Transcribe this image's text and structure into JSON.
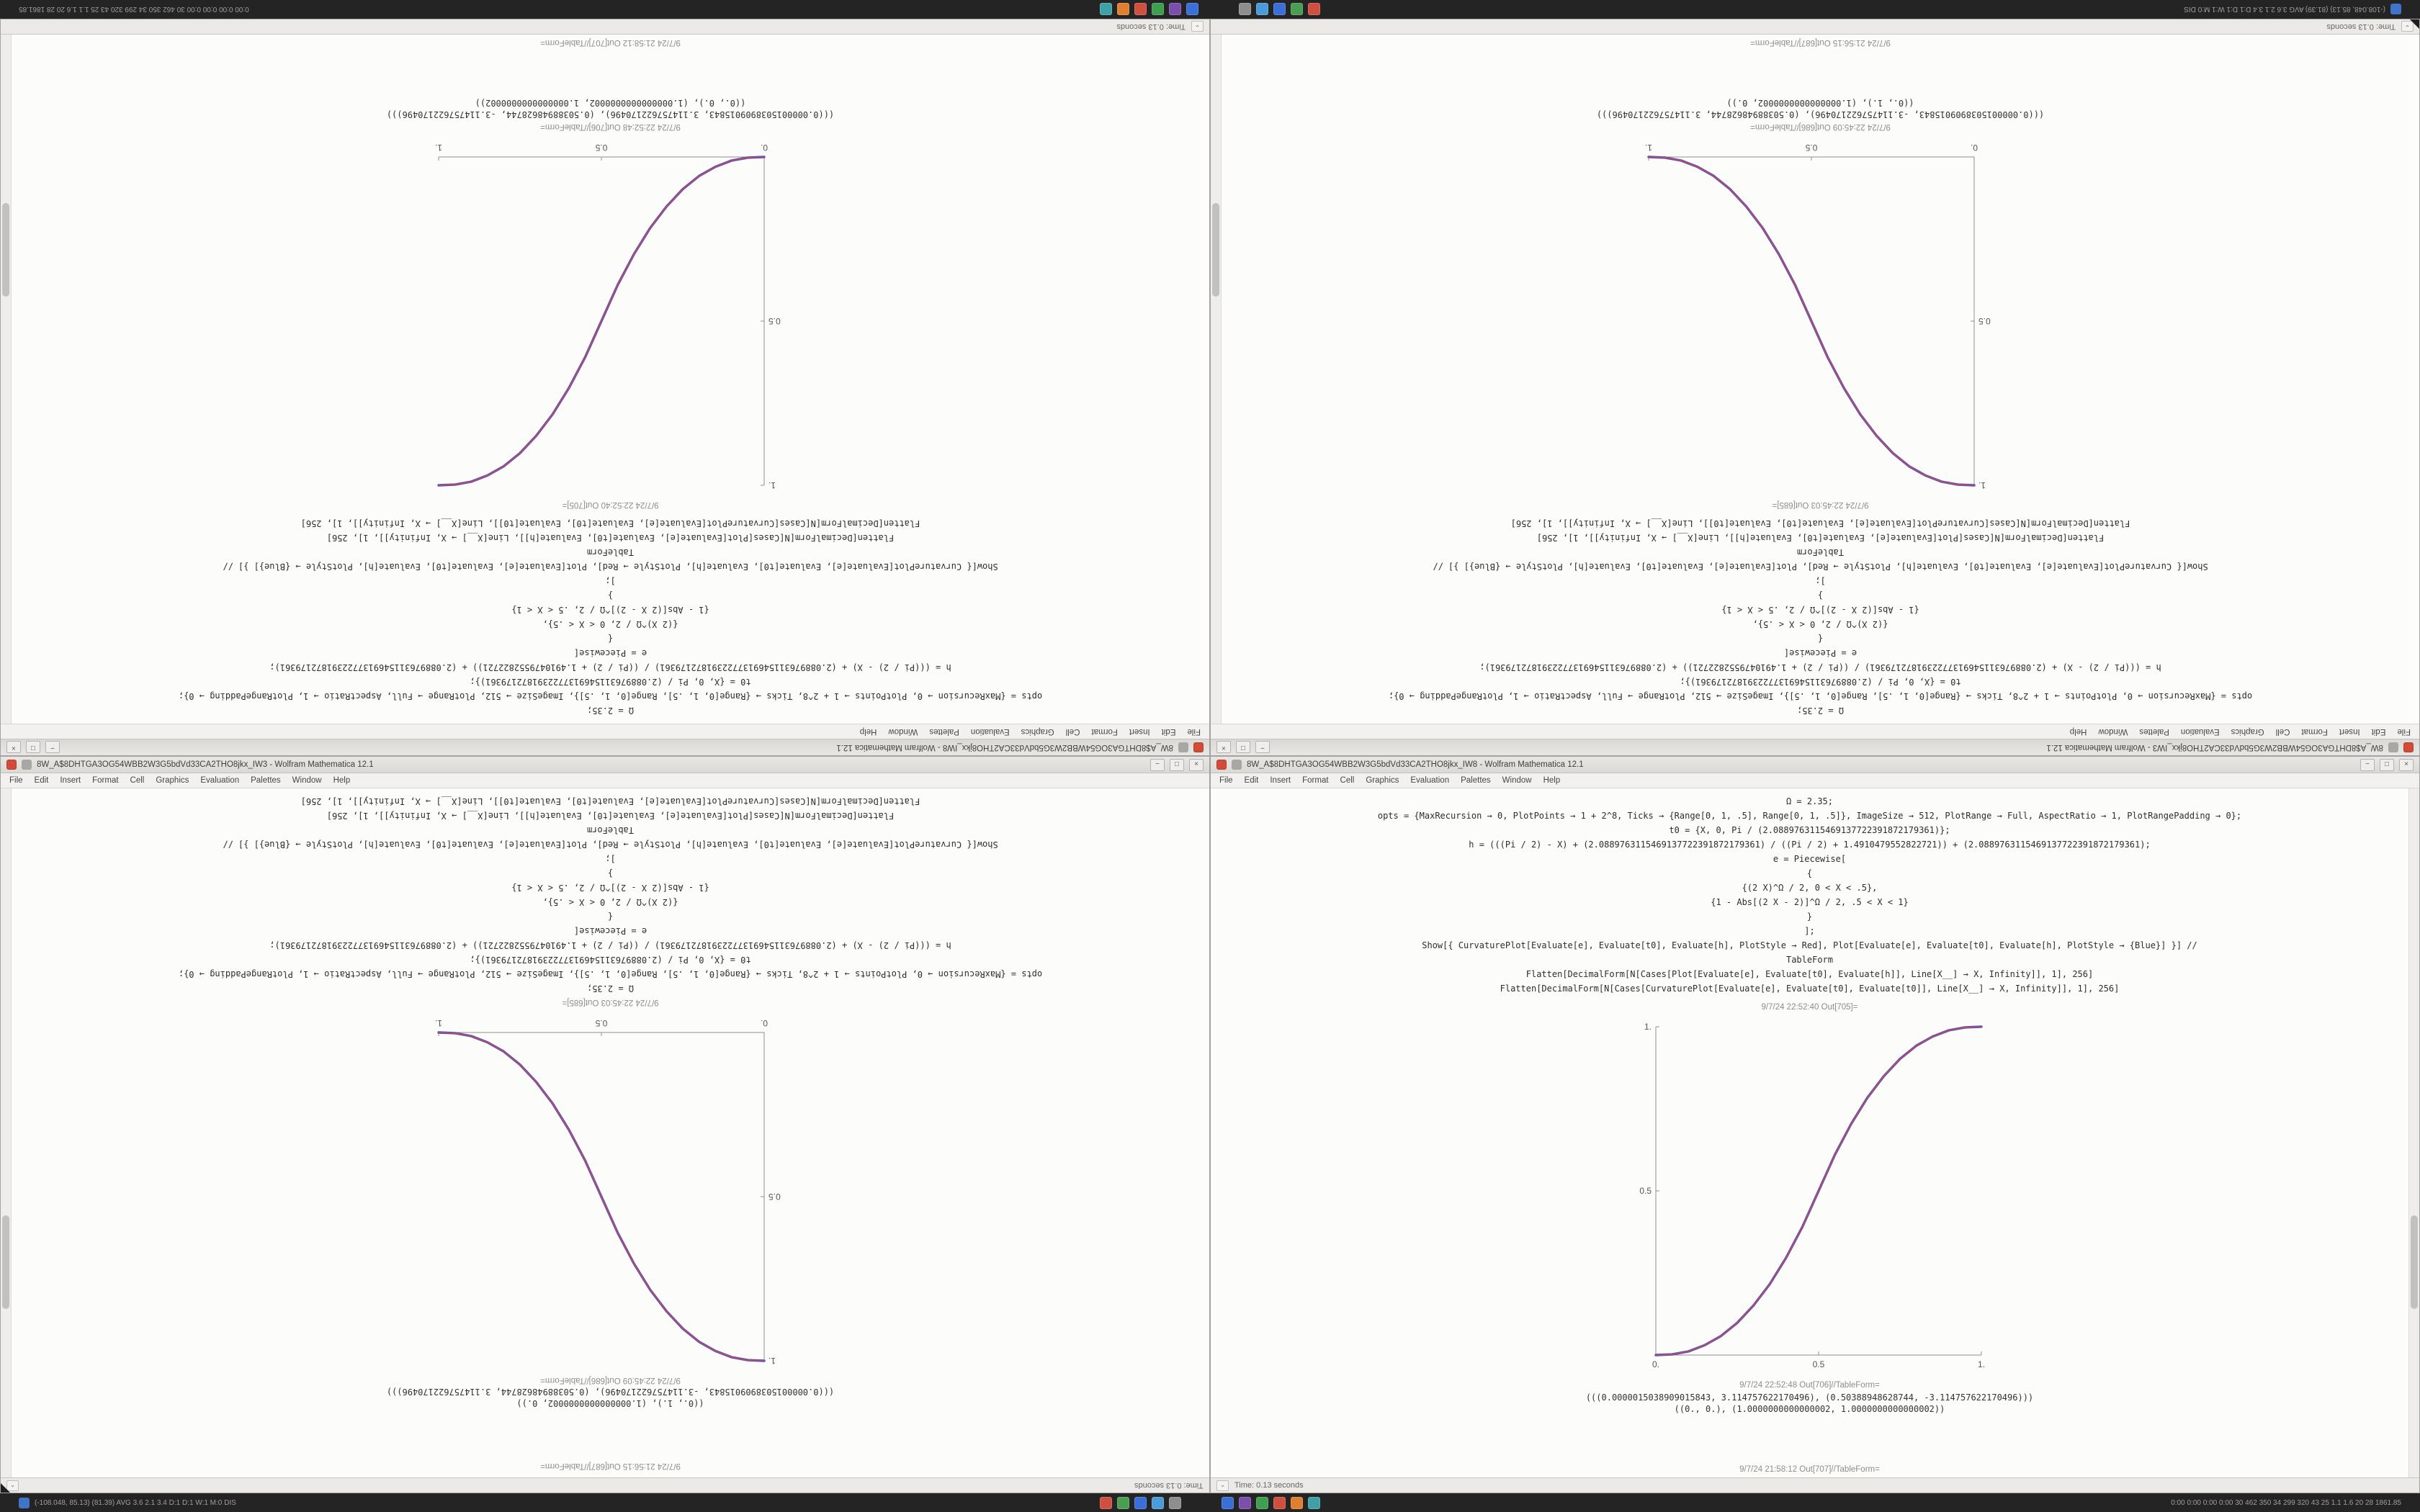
{
  "taskbar": {
    "left_text": "(-108.048, 85.13) (81.39) AVG 3.6 2.1 3.4 D:1 D:1 W:1 M:0 DIS",
    "right_text": "0:00 0:00 0:00 0:00 30 462 350 34 299 320 43 25 1.1 1.6 20 28 1861.85",
    "left_icons": [
      {
        "name": "app-icon-1",
        "color": "#d05040"
      },
      {
        "name": "app-icon-2",
        "color": "#4a9e52"
      },
      {
        "name": "app-icon-3",
        "color": "#3a6fd8"
      },
      {
        "name": "app-icon-4",
        "color": "#4a9bd8"
      },
      {
        "name": "app-icon-5",
        "color": "#8e8e8e"
      }
    ],
    "right_icons": [
      {
        "name": "app-icon-6",
        "color": "#3a6fd8"
      },
      {
        "name": "app-icon-7",
        "color": "#7a4fae"
      },
      {
        "name": "app-icon-8",
        "color": "#3f9e4f"
      },
      {
        "name": "app-icon-9",
        "color": "#d05040"
      },
      {
        "name": "app-icon-10",
        "color": "#de8030"
      },
      {
        "name": "app-icon-11",
        "color": "#3fa0a8"
      }
    ]
  },
  "menu": {
    "items": [
      "File",
      "Edit",
      "Insert",
      "Format",
      "Cell",
      "Graphics",
      "Evaluation",
      "Palettes",
      "Window",
      "Help"
    ]
  },
  "window_buttons": {
    "minimize": "−",
    "maximize": "□",
    "close": "×"
  },
  "icons": {
    "chevron_down": "⌄"
  },
  "status": {
    "time_label": "Time: 0.13 seconds"
  },
  "code_lines": [
    "Ω = 2.35;",
    "opts = {MaxRecursion → 0, PlotPoints → 1 + 2^8, Ticks → {Range[0, 1, .5], Range[0, 1, .5]}, ImageSize → 512, PlotRange → Full, AspectRatio → 1, PlotRangePadding → 0};",
    "t0 = {X, 0, Pi / (2.0889763115469137722391872179361)};",
    "h = (((Pi / 2) - X) + (2.0889763115469137722391872179361) / ((Pi / 2) + 1.4910479552822721)) + (2.0889763115469137722391872179361);",
    "e = Piecewise[",
    "{",
    "{(2 X)^Ω / 2, 0 < X < .5},",
    "{1 - Abs[(2 X - 2)]^Ω / 2, .5 < X < 1}",
    "}",
    "];",
    "Show[{ CurvaturePlot[Evaluate[e], Evaluate[t0], Evaluate[h], PlotStyle → Red], Plot[Evaluate[e], Evaluate[t0], Evaluate[h], PlotStyle → {Blue}] }] //",
    "TableForm",
    "Flatten[DecimalForm[N[Cases[Plot[Evaluate[e], Evaluate[t0], Evaluate[h]], Line[X__] → X, Infinity]], 1], 256]",
    "Flatten[DecimalForm[N[Cases[CurvaturePlot[Evaluate[e], Evaluate[t0], Evaluate[t0]], Line[X__] → X, Infinity]], 1], 256]"
  ],
  "notebook_a": {
    "title": "8W_A$8DHTGA3OG54WBB2W3G5bdVd33CA2THO8jkx_IW8 - Wolfram Mathematica 12.1",
    "out_plot_label": "9/7/24 22:52:40 Out[705]=",
    "out_table_label": "9/7/24 22:52:48 Out[706]//TableForm=",
    "output_line1": "(((0.0000015038909015843, 3.114757622170496), (0.50388948628744, -3.114757622170496)))",
    "output_line2": "((0., 0.), (1.0000000000000002, 1.0000000000000002))",
    "edge_label": "9/7/24 21:58:12 Out[707]//TableForm=",
    "plot": {
      "type": "line",
      "x": [
        0,
        0.05,
        0.1,
        0.15,
        0.2,
        0.25,
        0.3,
        0.35,
        0.4,
        0.45,
        0.5,
        0.55,
        0.6,
        0.65,
        0.7,
        0.75,
        0.8,
        0.85,
        0.9,
        0.95,
        1
      ],
      "y": [
        0,
        0.002,
        0.011,
        0.03,
        0.058,
        0.098,
        0.151,
        0.216,
        0.296,
        0.39,
        0.5,
        0.61,
        0.704,
        0.784,
        0.849,
        0.902,
        0.942,
        0.97,
        0.989,
        0.998,
        1
      ],
      "xticks": [
        {
          "v": 0,
          "label": "0."
        },
        {
          "v": 0.5,
          "label": "0.5"
        },
        {
          "v": 1,
          "label": "1."
        }
      ],
      "yticks": [
        {
          "v": 0.5,
          "label": "0.5"
        },
        {
          "v": 1,
          "label": "1."
        }
      ],
      "xlim": [
        0,
        1
      ],
      "ylim": [
        0,
        1
      ],
      "colors": [
        "#4553c4",
        "#c84a5a"
      ]
    }
  },
  "notebook_b": {
    "title": "8W_A$8DHTGA3OG54WBB2W3G5bdVd33CA2THO8jkx_IW3 - Wolfram Mathematica 12.1",
    "out_plot_label": "9/7/24 22:45:03 Out[685]=",
    "out_table_label": "9/7/24 22:45:09 Out[686]//TableForm=",
    "output_line1": "(((0.0000015038909015843, -3.114757622170496), (0.50388948628744, 3.114757622170496)))",
    "output_line2": "((0., 1.), (1.0000000000000002, 0.))",
    "edge_label": "9/7/24 21:56:15 Out[687]//TableForm=",
    "plot": {
      "type": "line",
      "x": [
        0,
        0.05,
        0.1,
        0.15,
        0.2,
        0.25,
        0.3,
        0.35,
        0.4,
        0.45,
        0.5,
        0.55,
        0.6,
        0.65,
        0.7,
        0.75,
        0.8,
        0.85,
        0.9,
        0.95,
        1
      ],
      "y": [
        1,
        0.998,
        0.989,
        0.97,
        0.942,
        0.902,
        0.849,
        0.784,
        0.704,
        0.61,
        0.5,
        0.39,
        0.296,
        0.216,
        0.151,
        0.098,
        0.058,
        0.03,
        0.011,
        0.002,
        0
      ],
      "xticks": [
        {
          "v": 0,
          "label": "0."
        },
        {
          "v": 0.5,
          "label": "0.5"
        },
        {
          "v": 1,
          "label": "1."
        }
      ],
      "yticks": [
        {
          "v": 0.5,
          "label": "0.5"
        },
        {
          "v": 1,
          "label": "1."
        }
      ],
      "xlim": [
        0,
        1
      ],
      "ylim": [
        0,
        1
      ],
      "colors": [
        "#4553c4",
        "#c84a5a"
      ]
    }
  }
}
